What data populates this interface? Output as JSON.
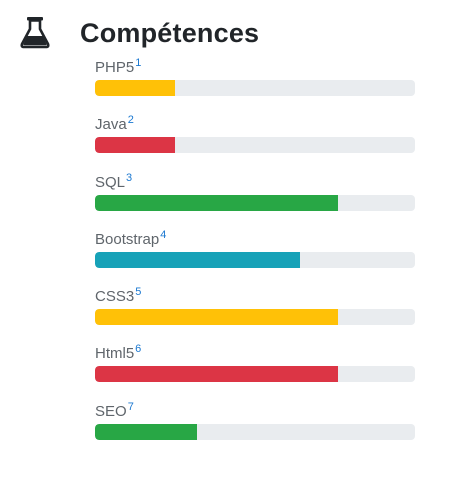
{
  "section": {
    "title": "Compétences",
    "icon": "flask-icon"
  },
  "skills": [
    {
      "label": "PHP5",
      "ref": "1",
      "level": 0.25,
      "color": "#ffc107"
    },
    {
      "label": "Java",
      "ref": "2",
      "level": 0.25,
      "color": "#dc3545"
    },
    {
      "label": "SQL",
      "ref": "3",
      "level": 0.76,
      "color": "#28a745"
    },
    {
      "label": "Bootstrap",
      "ref": "4",
      "level": 0.64,
      "color": "#17a2b8"
    },
    {
      "label": "CSS3",
      "ref": "5",
      "level": 0.76,
      "color": "#ffc107"
    },
    {
      "label": "Html5",
      "ref": "6",
      "level": 0.76,
      "color": "#dc3545"
    },
    {
      "label": "SEO",
      "ref": "7",
      "level": 0.32,
      "color": "#28a745"
    }
  ]
}
